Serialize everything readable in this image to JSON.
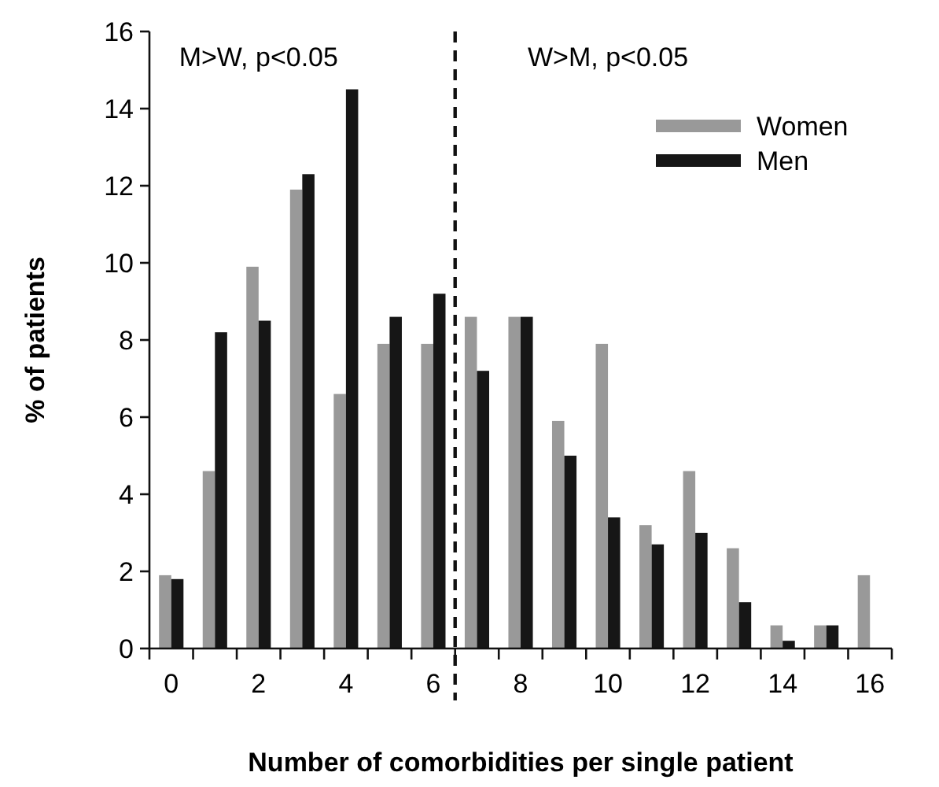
{
  "chart_data": {
    "type": "bar",
    "xlabel": "Number of comorbidities per single patient",
    "ylabel": "% of patients",
    "categories": [
      "0",
      null,
      "2",
      null,
      "4",
      null,
      "6",
      null,
      "8",
      null,
      "10",
      null,
      "12",
      null,
      "14",
      null,
      "16"
    ],
    "series": [
      {
        "name": "Women",
        "color": "#999999",
        "values": [
          1.9,
          4.6,
          9.9,
          11.9,
          6.6,
          7.9,
          7.9,
          8.6,
          8.6,
          5.9,
          7.9,
          3.2,
          4.6,
          2.6,
          0.6,
          0.6,
          1.9
        ]
      },
      {
        "name": "Men",
        "color": "#161616",
        "values": [
          1.8,
          8.2,
          8.5,
          12.3,
          14.5,
          8.6,
          9.2,
          7.2,
          8.6,
          5.0,
          3.4,
          2.7,
          3.0,
          1.2,
          0.2,
          0.6,
          0
        ]
      }
    ],
    "ylim": [
      0,
      16
    ],
    "yticks": [
      0,
      2,
      4,
      6,
      8,
      10,
      12,
      14,
      16
    ],
    "annotations": [
      "M>W, p<0.05",
      "W>M, p<0.05"
    ],
    "legend": "top right"
  }
}
